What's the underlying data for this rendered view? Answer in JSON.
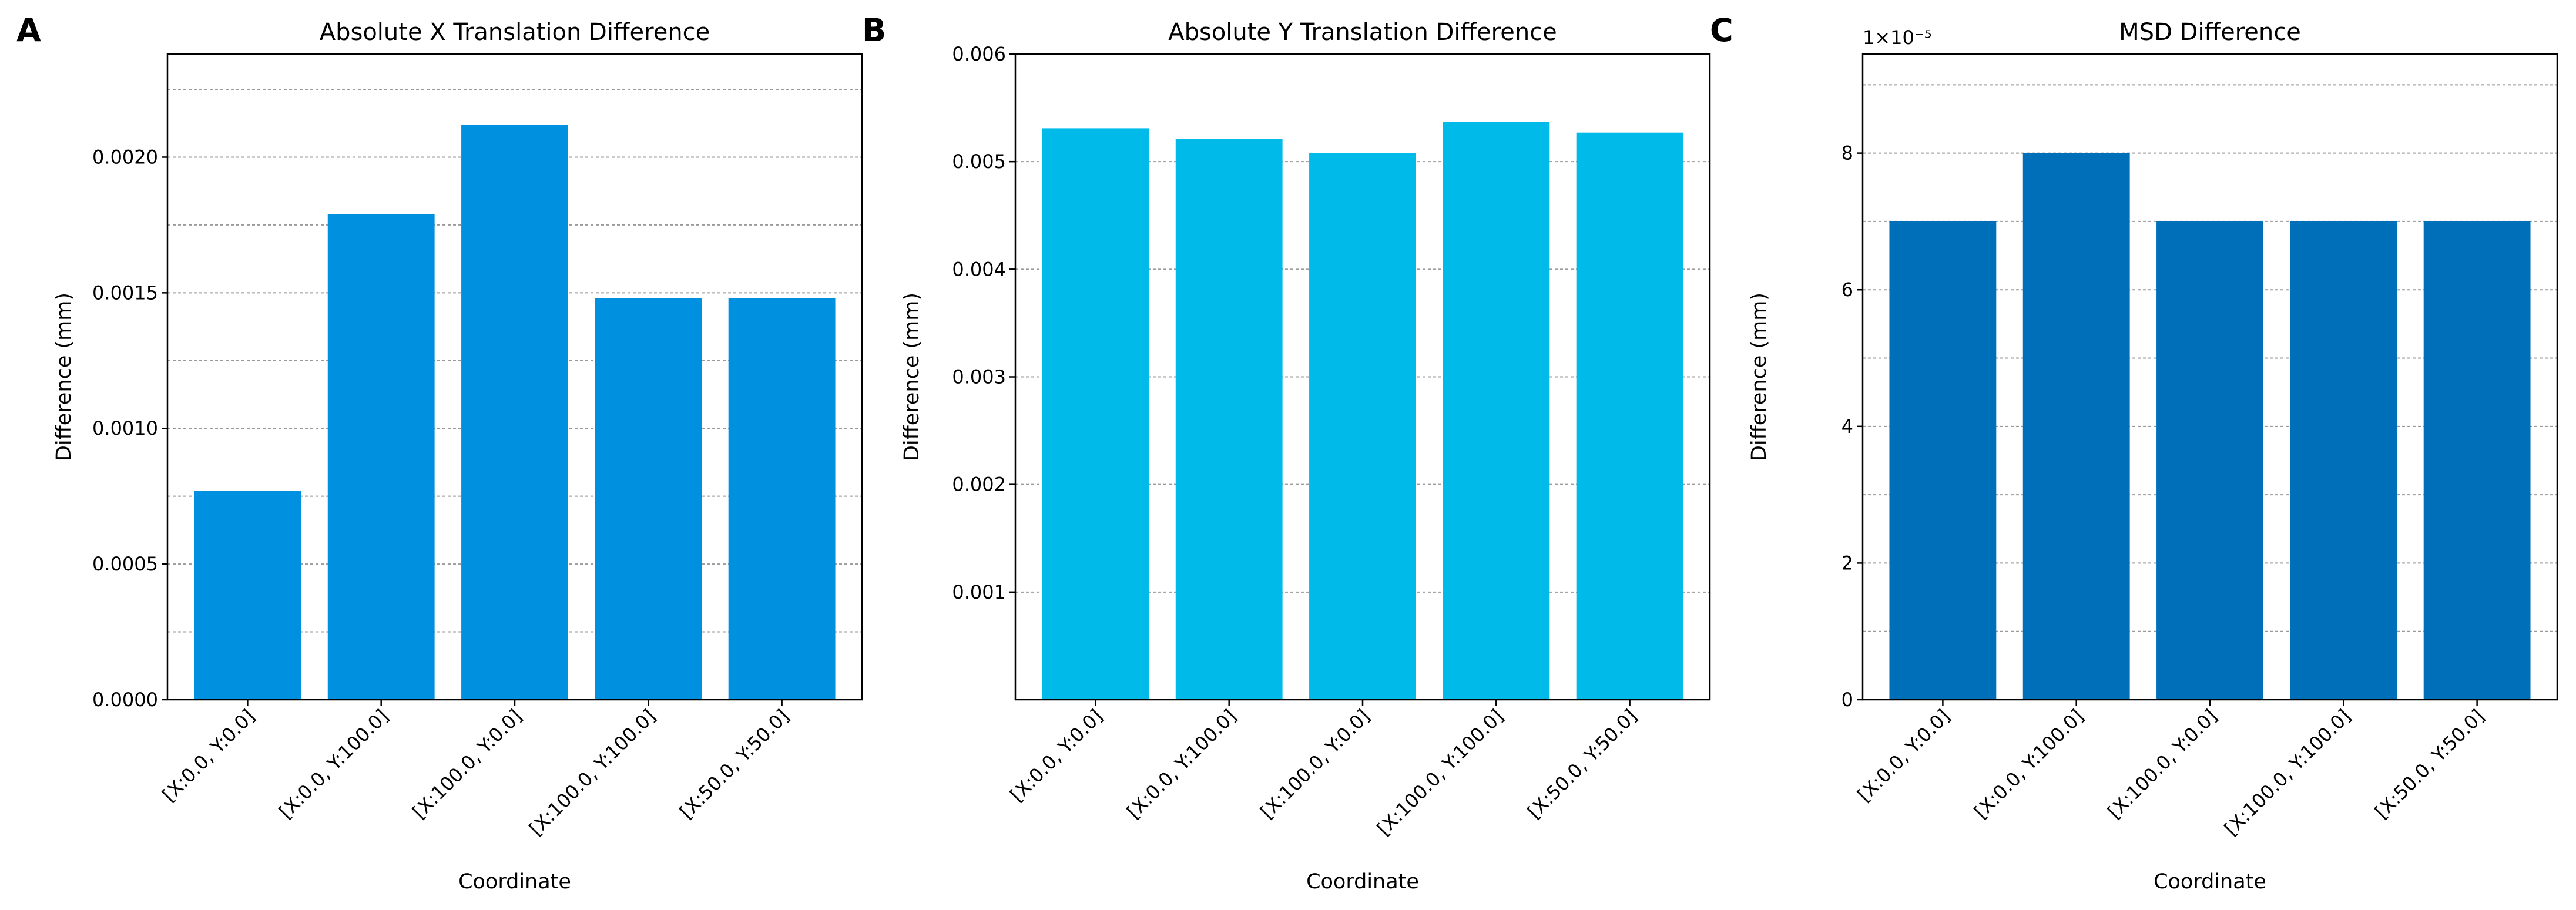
{
  "chart_data": [
    {
      "panel": "A",
      "type": "bar",
      "title": "Absolute X Translation Difference",
      "xlabel": "Coordinate",
      "ylabel": "Difference (mm)",
      "categories": [
        "[X:0.0, Y:0.0]",
        "[X:0.0, Y:100.0]",
        "[X:100.0, Y:0.0]",
        "[X:100.0, Y:100.0]",
        "[X:50.0, Y:50.0]"
      ],
      "values": [
        0.00077,
        0.00179,
        0.00212,
        0.00148,
        0.00148
      ],
      "ylim": [
        0,
        0.00238
      ],
      "yticks": [
        0,
        0.0005,
        0.001,
        0.0015,
        0.002
      ],
      "ytick_labels": [
        "0.0000",
        "0.0005",
        "0.0010",
        "0.0015",
        "0.0020"
      ],
      "minor_yticks": [
        0.00025,
        0.00075,
        0.00125,
        0.00175,
        0.00225
      ],
      "grid": true,
      "exponent_label": "",
      "color": "#0090e0"
    },
    {
      "panel": "B",
      "type": "bar",
      "title": "Absolute Y Translation Difference",
      "xlabel": "Coordinate",
      "ylabel": "Difference (mm)",
      "categories": [
        "[X:0.0, Y:0.0]",
        "[X:0.0, Y:100.0]",
        "[X:100.0, Y:0.0]",
        "[X:100.0, Y:100.0]",
        "[X:50.0, Y:50.0]"
      ],
      "values": [
        0.00531,
        0.00521,
        0.00508,
        0.00537,
        0.00527
      ],
      "ylim": [
        0,
        0.006
      ],
      "yticks": [
        0.001,
        0.002,
        0.003,
        0.004,
        0.005,
        0.006
      ],
      "ytick_labels": [
        "0.001",
        "0.002",
        "0.003",
        "0.004",
        "0.005",
        "0.006"
      ],
      "minor_yticks": [],
      "grid": true,
      "exponent_label": "",
      "color": "#00bbea"
    },
    {
      "panel": "C",
      "type": "bar",
      "title": "MSD Difference",
      "xlabel": "Coordinate",
      "ylabel": "Difference (mm)",
      "categories": [
        "[X:0.0, Y:0.0]",
        "[X:0.0, Y:100.0]",
        "[X:100.0, Y:0.0]",
        "[X:100.0, Y:100.0]",
        "[X:50.0, Y:50.0]"
      ],
      "values": [
        7,
        8,
        7,
        7,
        7
      ],
      "ylim": [
        0,
        9.45
      ],
      "yticks": [
        0,
        2,
        4,
        6,
        8
      ],
      "ytick_labels": [
        "0",
        "2",
        "4",
        "6",
        "8"
      ],
      "minor_yticks": [
        1,
        3,
        5,
        7,
        9
      ],
      "grid": true,
      "exponent_label": "1×10⁻⁵",
      "color": "#006fba"
    }
  ]
}
